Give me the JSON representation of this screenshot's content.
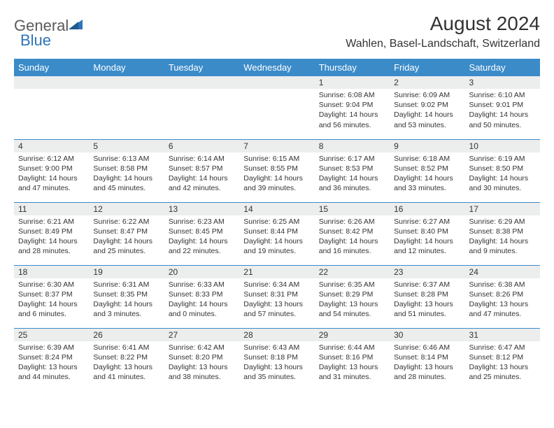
{
  "header": {
    "logo_general": "General",
    "logo_blue": "Blue",
    "title": "August 2024",
    "location": "Wahlen, Basel-Landschaft, Switzerland"
  },
  "colors": {
    "header_bg": "#3b8bc9",
    "header_text": "#ffffff",
    "daynum_bg": "#eceded",
    "row_border": "#3b8bc9",
    "logo_gray": "#5a5a5a",
    "logo_blue": "#2d74b8"
  },
  "columns": [
    "Sunday",
    "Monday",
    "Tuesday",
    "Wednesday",
    "Thursday",
    "Friday",
    "Saturday"
  ],
  "weeks": [
    [
      null,
      null,
      null,
      null,
      {
        "num": "1",
        "sunrise": "Sunrise: 6:08 AM",
        "sunset": "Sunset: 9:04 PM",
        "daylight": "Daylight: 14 hours and 56 minutes."
      },
      {
        "num": "2",
        "sunrise": "Sunrise: 6:09 AM",
        "sunset": "Sunset: 9:02 PM",
        "daylight": "Daylight: 14 hours and 53 minutes."
      },
      {
        "num": "3",
        "sunrise": "Sunrise: 6:10 AM",
        "sunset": "Sunset: 9:01 PM",
        "daylight": "Daylight: 14 hours and 50 minutes."
      }
    ],
    [
      {
        "num": "4",
        "sunrise": "Sunrise: 6:12 AM",
        "sunset": "Sunset: 9:00 PM",
        "daylight": "Daylight: 14 hours and 47 minutes."
      },
      {
        "num": "5",
        "sunrise": "Sunrise: 6:13 AM",
        "sunset": "Sunset: 8:58 PM",
        "daylight": "Daylight: 14 hours and 45 minutes."
      },
      {
        "num": "6",
        "sunrise": "Sunrise: 6:14 AM",
        "sunset": "Sunset: 8:57 PM",
        "daylight": "Daylight: 14 hours and 42 minutes."
      },
      {
        "num": "7",
        "sunrise": "Sunrise: 6:15 AM",
        "sunset": "Sunset: 8:55 PM",
        "daylight": "Daylight: 14 hours and 39 minutes."
      },
      {
        "num": "8",
        "sunrise": "Sunrise: 6:17 AM",
        "sunset": "Sunset: 8:53 PM",
        "daylight": "Daylight: 14 hours and 36 minutes."
      },
      {
        "num": "9",
        "sunrise": "Sunrise: 6:18 AM",
        "sunset": "Sunset: 8:52 PM",
        "daylight": "Daylight: 14 hours and 33 minutes."
      },
      {
        "num": "10",
        "sunrise": "Sunrise: 6:19 AM",
        "sunset": "Sunset: 8:50 PM",
        "daylight": "Daylight: 14 hours and 30 minutes."
      }
    ],
    [
      {
        "num": "11",
        "sunrise": "Sunrise: 6:21 AM",
        "sunset": "Sunset: 8:49 PM",
        "daylight": "Daylight: 14 hours and 28 minutes."
      },
      {
        "num": "12",
        "sunrise": "Sunrise: 6:22 AM",
        "sunset": "Sunset: 8:47 PM",
        "daylight": "Daylight: 14 hours and 25 minutes."
      },
      {
        "num": "13",
        "sunrise": "Sunrise: 6:23 AM",
        "sunset": "Sunset: 8:45 PM",
        "daylight": "Daylight: 14 hours and 22 minutes."
      },
      {
        "num": "14",
        "sunrise": "Sunrise: 6:25 AM",
        "sunset": "Sunset: 8:44 PM",
        "daylight": "Daylight: 14 hours and 19 minutes."
      },
      {
        "num": "15",
        "sunrise": "Sunrise: 6:26 AM",
        "sunset": "Sunset: 8:42 PM",
        "daylight": "Daylight: 14 hours and 16 minutes."
      },
      {
        "num": "16",
        "sunrise": "Sunrise: 6:27 AM",
        "sunset": "Sunset: 8:40 PM",
        "daylight": "Daylight: 14 hours and 12 minutes."
      },
      {
        "num": "17",
        "sunrise": "Sunrise: 6:29 AM",
        "sunset": "Sunset: 8:38 PM",
        "daylight": "Daylight: 14 hours and 9 minutes."
      }
    ],
    [
      {
        "num": "18",
        "sunrise": "Sunrise: 6:30 AM",
        "sunset": "Sunset: 8:37 PM",
        "daylight": "Daylight: 14 hours and 6 minutes."
      },
      {
        "num": "19",
        "sunrise": "Sunrise: 6:31 AM",
        "sunset": "Sunset: 8:35 PM",
        "daylight": "Daylight: 14 hours and 3 minutes."
      },
      {
        "num": "20",
        "sunrise": "Sunrise: 6:33 AM",
        "sunset": "Sunset: 8:33 PM",
        "daylight": "Daylight: 14 hours and 0 minutes."
      },
      {
        "num": "21",
        "sunrise": "Sunrise: 6:34 AM",
        "sunset": "Sunset: 8:31 PM",
        "daylight": "Daylight: 13 hours and 57 minutes."
      },
      {
        "num": "22",
        "sunrise": "Sunrise: 6:35 AM",
        "sunset": "Sunset: 8:29 PM",
        "daylight": "Daylight: 13 hours and 54 minutes."
      },
      {
        "num": "23",
        "sunrise": "Sunrise: 6:37 AM",
        "sunset": "Sunset: 8:28 PM",
        "daylight": "Daylight: 13 hours and 51 minutes."
      },
      {
        "num": "24",
        "sunrise": "Sunrise: 6:38 AM",
        "sunset": "Sunset: 8:26 PM",
        "daylight": "Daylight: 13 hours and 47 minutes."
      }
    ],
    [
      {
        "num": "25",
        "sunrise": "Sunrise: 6:39 AM",
        "sunset": "Sunset: 8:24 PM",
        "daylight": "Daylight: 13 hours and 44 minutes."
      },
      {
        "num": "26",
        "sunrise": "Sunrise: 6:41 AM",
        "sunset": "Sunset: 8:22 PM",
        "daylight": "Daylight: 13 hours and 41 minutes."
      },
      {
        "num": "27",
        "sunrise": "Sunrise: 6:42 AM",
        "sunset": "Sunset: 8:20 PM",
        "daylight": "Daylight: 13 hours and 38 minutes."
      },
      {
        "num": "28",
        "sunrise": "Sunrise: 6:43 AM",
        "sunset": "Sunset: 8:18 PM",
        "daylight": "Daylight: 13 hours and 35 minutes."
      },
      {
        "num": "29",
        "sunrise": "Sunrise: 6:44 AM",
        "sunset": "Sunset: 8:16 PM",
        "daylight": "Daylight: 13 hours and 31 minutes."
      },
      {
        "num": "30",
        "sunrise": "Sunrise: 6:46 AM",
        "sunset": "Sunset: 8:14 PM",
        "daylight": "Daylight: 13 hours and 28 minutes."
      },
      {
        "num": "31",
        "sunrise": "Sunrise: 6:47 AM",
        "sunset": "Sunset: 8:12 PM",
        "daylight": "Daylight: 13 hours and 25 minutes."
      }
    ]
  ]
}
